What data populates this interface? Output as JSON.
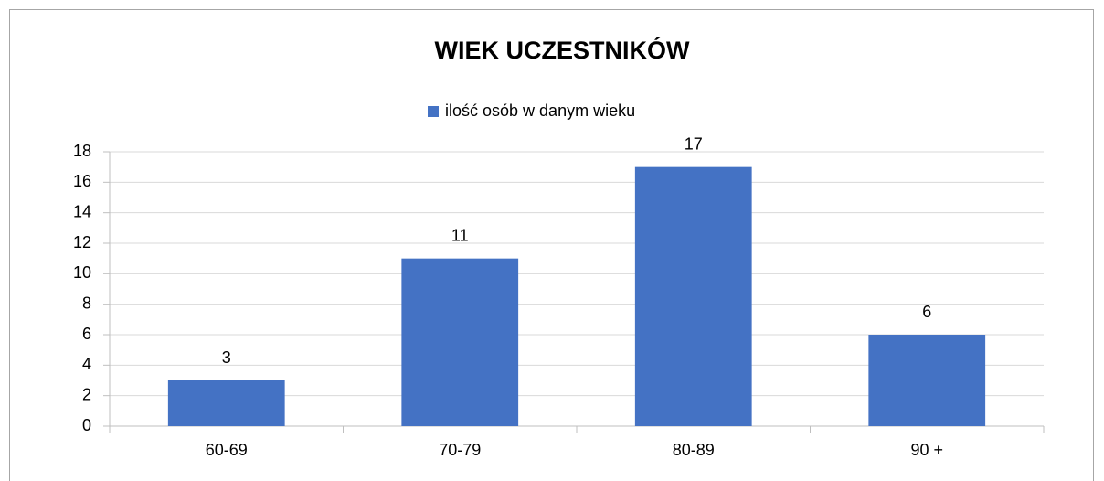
{
  "chart_data": {
    "type": "bar",
    "title": "WIEK UCZESTNIKÓW",
    "categories": [
      "60-69",
      "70-79",
      "80-89",
      "90 +"
    ],
    "series": [
      {
        "name": "ilość osób w danym wieku",
        "color": "#4472c4",
        "values": [
          3,
          11,
          17,
          6
        ]
      }
    ],
    "ylim": [
      0,
      18
    ],
    "yticks": [
      0,
      2,
      4,
      6,
      8,
      10,
      12,
      14,
      16,
      18
    ],
    "grid": true,
    "legend": "top"
  }
}
